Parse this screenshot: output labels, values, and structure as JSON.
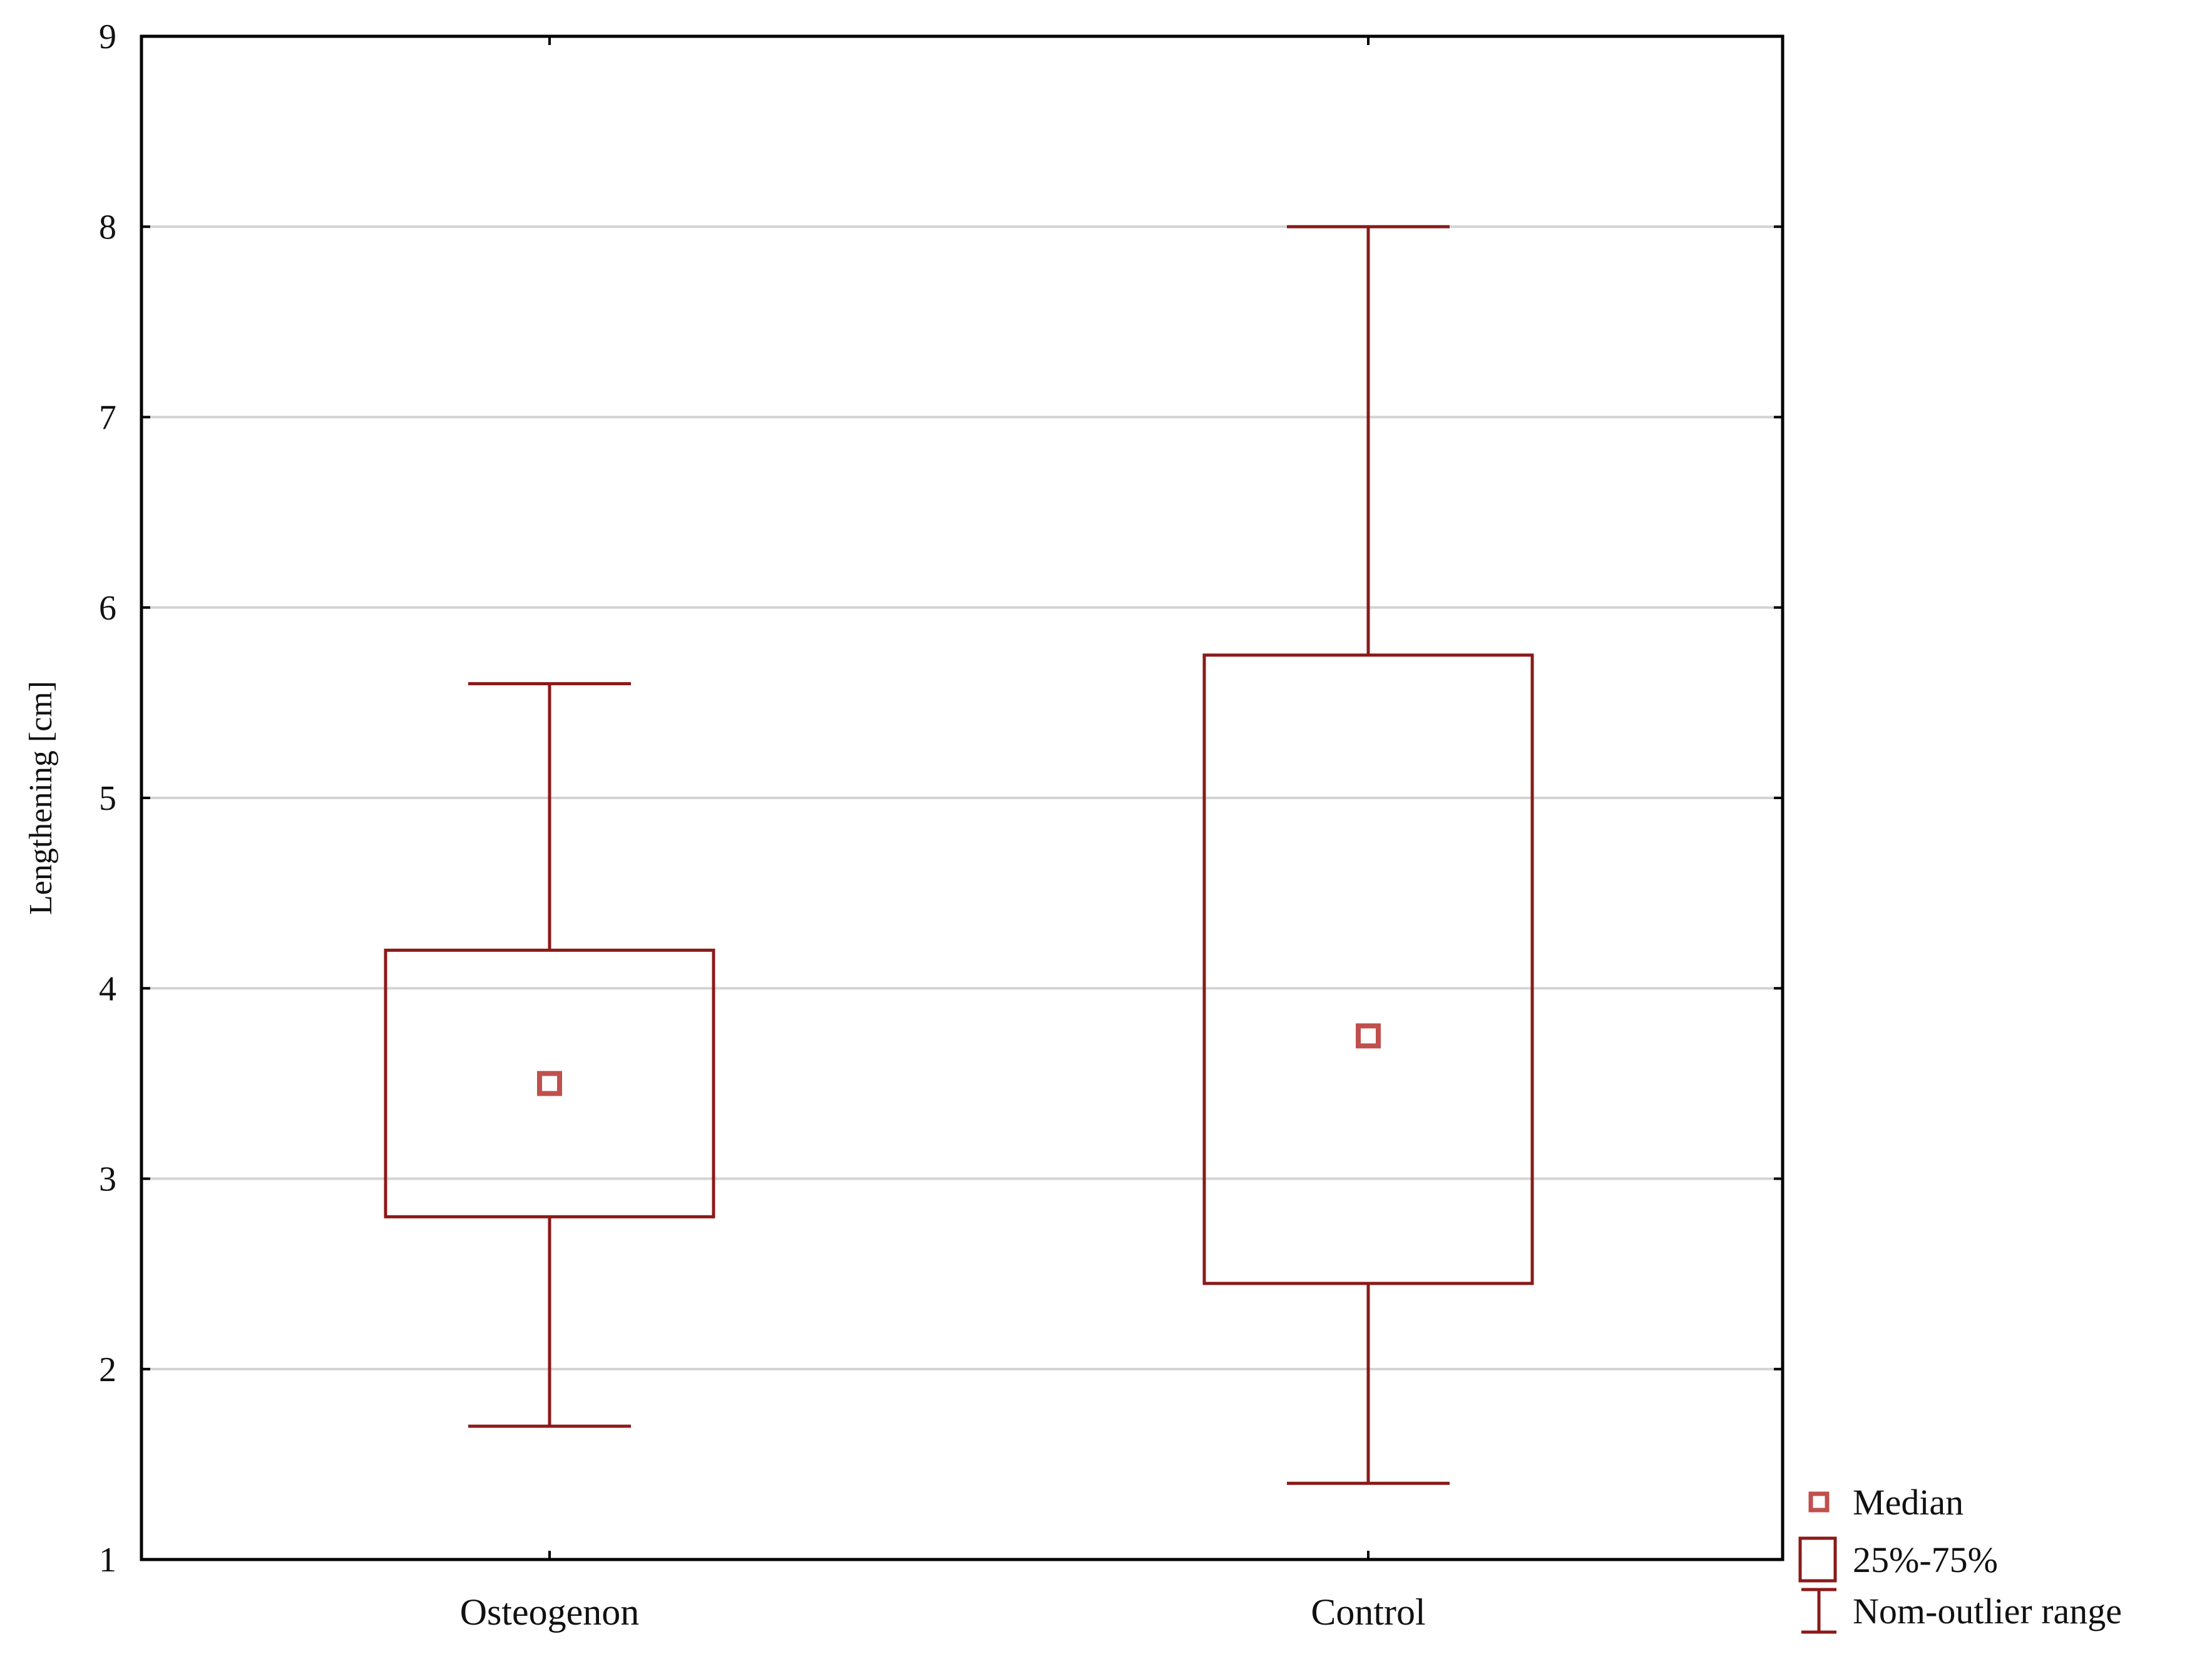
{
  "chart_data": {
    "type": "boxplot",
    "title": "",
    "xlabel": "",
    "ylabel": "Lengthening  [cm]",
    "ylim": [
      1,
      9
    ],
    "yticks": [
      1,
      2,
      3,
      4,
      5,
      6,
      7,
      8,
      9
    ],
    "grid": true,
    "categories": [
      "Osteogenon",
      "Control"
    ],
    "boxes": [
      {
        "category": "Osteogenon",
        "median": 3.5,
        "q1": 2.8,
        "q3": 4.2,
        "whisker_low": 1.7,
        "whisker_high": 5.6
      },
      {
        "category": "Control",
        "median": 3.75,
        "q1": 2.45,
        "q3": 5.75,
        "whisker_low": 1.4,
        "whisker_high": 8.0
      }
    ],
    "legend": {
      "position": "bottom-right-outside",
      "items": [
        {
          "symbol": "median-marker",
          "label": "Median"
        },
        {
          "symbol": "box",
          "label": "25%-75%"
        },
        {
          "symbol": "whisker",
          "label": "Nom-outlier range"
        }
      ]
    },
    "colors": {
      "box": "#8b1a1a",
      "median_marker": "#c0504d",
      "grid": "#d3d3d3",
      "axis": "#000000"
    }
  }
}
